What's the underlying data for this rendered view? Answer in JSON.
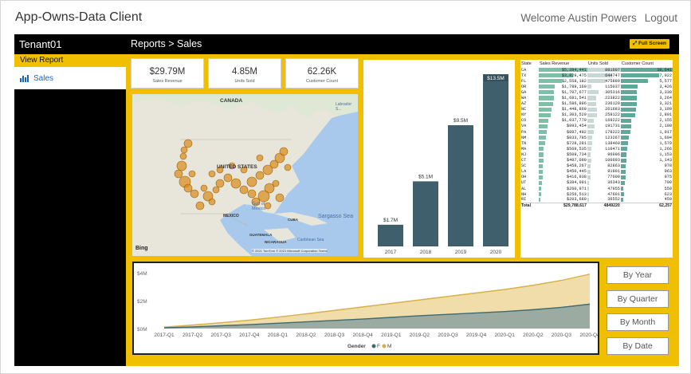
{
  "app": {
    "title": "App-Owns-Data Client",
    "welcome": "Welcome Austin Powers",
    "logout": "Logout"
  },
  "sidebar": {
    "tenant": "Tenant01",
    "view_report": "View Report",
    "items": [
      {
        "label": "Sales"
      }
    ]
  },
  "report_header": {
    "breadcrumb": "Reports > Sales",
    "fullscreen": "Full Screen"
  },
  "kpis": [
    {
      "value": "$29.79M",
      "label": "Sales Revenue"
    },
    {
      "value": "4.85M",
      "label": "Units Sold"
    },
    {
      "value": "62.26K",
      "label": "Customer Count"
    }
  ],
  "map": {
    "labels": {
      "canada": "CANADA",
      "us": "UNITED STATES",
      "mexico": "MEXICO",
      "gulf": "Gulf of Mexico",
      "sargasso": "Sargasso Sea",
      "cuba": "CUBA",
      "guatemala": "GUATEMALA",
      "nicaragua": "NICARAGUA",
      "caribbean": "Caribbean Sea",
      "labrador": "Labrador S..."
    },
    "attribution": "© 2021 TomTom © 2021 Microsoft Corporation Terms",
    "provider": "Bing"
  },
  "colors": {
    "accent": "#f0c000",
    "bar": "#3e5f6b",
    "teal": "#5fa89a",
    "gold": "#e8c76f",
    "slate": "#7f9aa0"
  },
  "chart_data": [
    {
      "type": "bar",
      "categories": [
        "2017",
        "2018",
        "2019",
        "2020"
      ],
      "values": [
        1.7,
        5.1,
        9.5,
        13.5
      ],
      "data_labels": [
        "$1.7M",
        "$5.1M",
        "$9.5M",
        "$13.5M"
      ],
      "title": "",
      "xlabel": "",
      "ylabel": ""
    },
    {
      "type": "table",
      "columns": [
        "State",
        "Sales Revenue",
        "Units Sold",
        "Customer Count"
      ],
      "rows": [
        [
          "CA",
          "$5,394,441",
          "881607",
          "10,641"
        ],
        [
          "TX",
          "$3,829,475",
          "644747",
          "7,922"
        ],
        [
          "FL",
          "$2,558,182",
          "475889",
          "5,577"
        ],
        [
          "OR",
          "$1,789,160",
          "115037",
          "3,426"
        ],
        [
          "GA",
          "$1,707,677",
          "305316",
          "3,330"
        ],
        [
          "WA",
          "$1,681,541",
          "223822",
          "3,264"
        ],
        [
          "AZ",
          "$1,586,886",
          "236120",
          "3,321"
        ],
        [
          "NC",
          "$1,448,869",
          "261683",
          "3,109"
        ],
        [
          "NY",
          "$1,303,529",
          "258122",
          "2,891"
        ],
        [
          "CO",
          "$1,037,779",
          "169222",
          "2,155"
        ],
        [
          "VA",
          "$993,454",
          "191731",
          "2,190"
        ],
        [
          "PA",
          "$887,492",
          "178222",
          "1,917"
        ],
        [
          "NM",
          "$833,785",
          "123267",
          "1,604"
        ],
        [
          "TN",
          "$728,281",
          "138460",
          "1,579"
        ],
        [
          "MA",
          "$569,535",
          "110471",
          "1,266"
        ],
        [
          "NJ",
          "$509,734",
          "96096",
          "1,153"
        ],
        [
          "CT",
          "$497,090",
          "100693",
          "1,143"
        ],
        [
          "SC",
          "$458,267",
          "82863",
          "978"
        ],
        [
          "LA",
          "$450,445",
          "91901",
          "963"
        ],
        [
          "OH",
          "$416,938",
          "77600",
          "975"
        ],
        [
          "UT",
          "$384,091",
          "36343",
          "790"
        ],
        [
          "AL",
          "$260,971",
          "47955",
          "559"
        ],
        [
          "NH",
          "$256,513",
          "47601",
          "623"
        ],
        [
          "RI",
          "$203,680",
          "36552",
          "459"
        ]
      ],
      "total": [
        "Total",
        "$29,788,617",
        "4849220",
        "62,257"
      ],
      "revenue_values": [
        5394441,
        3829475,
        2558182,
        1789160,
        1707677,
        1681541,
        1586886,
        1448869,
        1303529,
        1037779,
        993454,
        887492,
        833785,
        728281,
        569535,
        509734,
        497090,
        458267,
        450445,
        416938,
        384091,
        260971,
        256513,
        203680
      ],
      "units_values": [
        881607,
        644747,
        475889,
        115037,
        305316,
        223822,
        236120,
        261683,
        258122,
        169222,
        191731,
        178222,
        123267,
        138460,
        110471,
        96096,
        100693,
        82863,
        91901,
        77600,
        36343,
        47955,
        47601,
        36552
      ],
      "customer_values": [
        10641,
        7922,
        5577,
        3426,
        3330,
        3264,
        3321,
        3109,
        2891,
        2155,
        2190,
        1917,
        1604,
        1579,
        1266,
        1153,
        1143,
        978,
        963,
        975,
        790,
        559,
        623,
        459
      ]
    },
    {
      "type": "area",
      "categories": [
        "2017-Q1",
        "2017-Q2",
        "2017-Q3",
        "2017-Q4",
        "2018-Q1",
        "2018-Q2",
        "2018-Q3",
        "2018-Q4",
        "2019-Q1",
        "2019-Q2",
        "2019-Q3",
        "2019-Q4",
        "2020-Q1",
        "2020-Q2",
        "2020-Q3",
        "2020-Q4"
      ],
      "series": [
        {
          "name": "F",
          "values": [
            0.05,
            0.12,
            0.2,
            0.28,
            0.38,
            0.48,
            0.58,
            0.68,
            0.8,
            0.92,
            1.02,
            1.12,
            1.22,
            1.35,
            1.52,
            1.75
          ]
        },
        {
          "name": "M",
          "values": [
            0.1,
            0.25,
            0.42,
            0.6,
            0.82,
            1.05,
            1.3,
            1.55,
            1.8,
            2.05,
            2.3,
            2.55,
            2.8,
            3.1,
            3.45,
            3.9
          ]
        }
      ],
      "y_ticks": [
        "$4M",
        "$2M",
        "$0M"
      ],
      "ylim": [
        0,
        4
      ],
      "legend_title": "Gender",
      "legend": [
        "F",
        "M"
      ]
    }
  ],
  "buttons": [
    "By Year",
    "By Quarter",
    "By Month",
    "By Date"
  ]
}
